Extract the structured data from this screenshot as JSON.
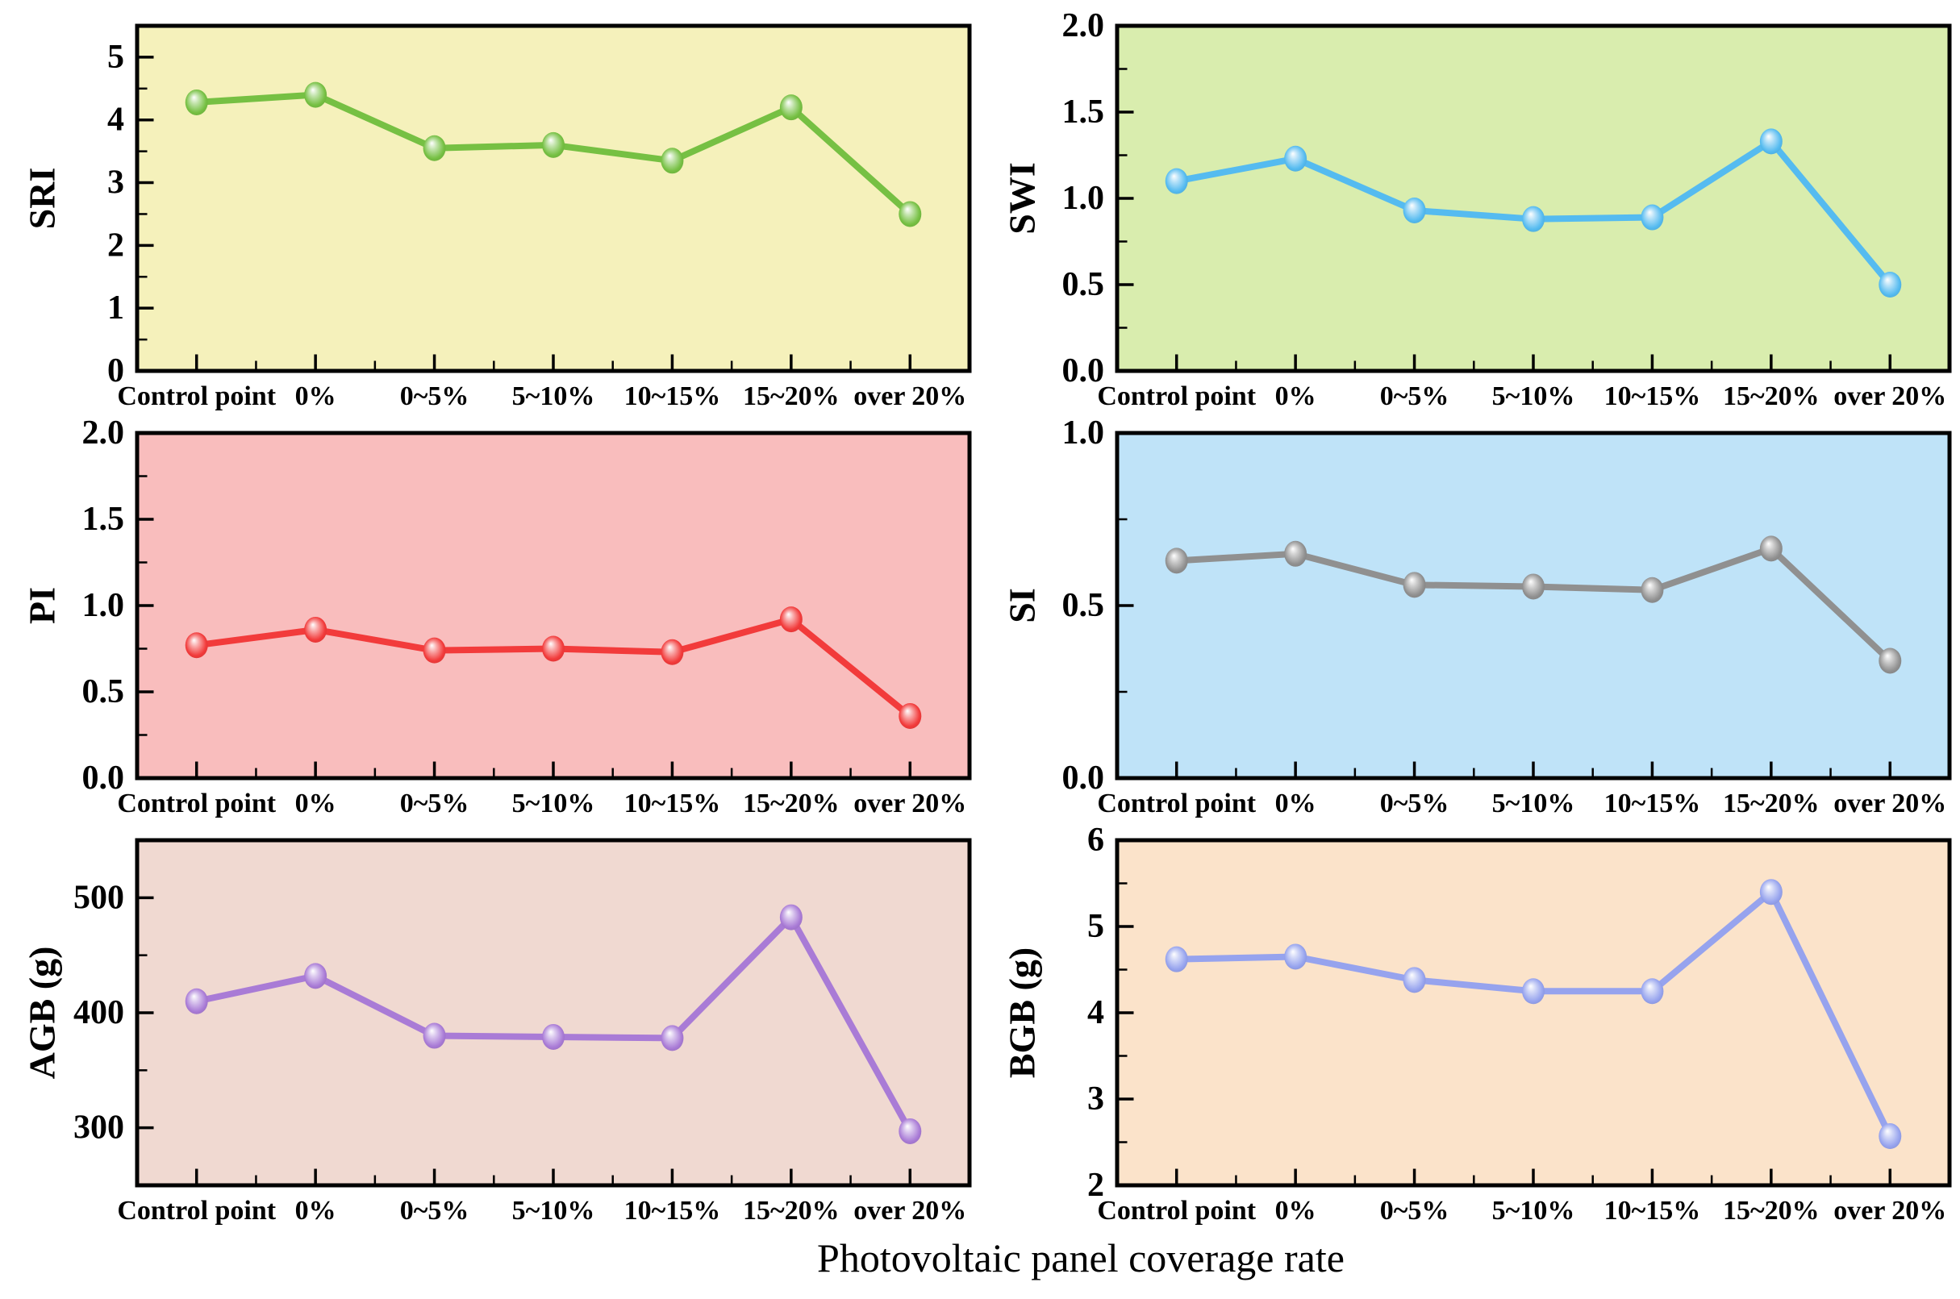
{
  "figure": {
    "x_axis_title": "Photovoltaic panel coverage rate"
  },
  "categories": [
    "Control point",
    "0%",
    "0~5%",
    "5~10%",
    "10~15%",
    "15~20%",
    "over 20%"
  ],
  "chart_data": [
    {
      "type": "line",
      "ylabel": "SRI",
      "categories": [
        "Control point",
        "0%",
        "0~5%",
        "5~10%",
        "10~15%",
        "15~20%",
        "over 20%"
      ],
      "values": [
        4.28,
        4.4,
        3.55,
        3.6,
        3.35,
        4.2,
        2.5
      ],
      "ylim": [
        0,
        5.5
      ],
      "ytick_values": [
        0,
        1,
        2,
        3,
        4,
        5
      ],
      "ytick_labels": [
        "0",
        "1",
        "2",
        "3",
        "4",
        "5"
      ],
      "minor_step": 0.5,
      "series_color": "#76c043",
      "background_color": "#f5f1bb"
    },
    {
      "type": "line",
      "ylabel": "SWI",
      "categories": [
        "Control point",
        "0%",
        "0~5%",
        "5~10%",
        "10~15%",
        "15~20%",
        "over 20%"
      ],
      "values": [
        1.1,
        1.23,
        0.93,
        0.88,
        0.89,
        1.33,
        0.5
      ],
      "ylim": [
        0,
        2
      ],
      "ytick_values": [
        0,
        0.5,
        1,
        1.5,
        2
      ],
      "ytick_labels": [
        "0.0",
        "0.5",
        "1.0",
        "1.5",
        "2.0"
      ],
      "minor_step": 0.25,
      "series_color": "#55bbf0",
      "background_color": "#d9edae"
    },
    {
      "type": "line",
      "ylabel": "PI",
      "categories": [
        "Control point",
        "0%",
        "0~5%",
        "5~10%",
        "10~15%",
        "15~20%",
        "over 20%"
      ],
      "values": [
        0.77,
        0.86,
        0.74,
        0.75,
        0.73,
        0.92,
        0.36
      ],
      "ylim": [
        0,
        2
      ],
      "ytick_values": [
        0,
        0.5,
        1,
        1.5,
        2
      ],
      "ytick_labels": [
        "0.0",
        "0.5",
        "1.0",
        "1.5",
        "2.0"
      ],
      "minor_step": 0.25,
      "series_color": "#f23b3b",
      "background_color": "#f9bdbd"
    },
    {
      "type": "line",
      "ylabel": "SI",
      "categories": [
        "Control point",
        "0%",
        "0~5%",
        "5~10%",
        "10~15%",
        "15~20%",
        "over 20%"
      ],
      "values": [
        0.63,
        0.65,
        0.56,
        0.555,
        0.545,
        0.665,
        0.34
      ],
      "ylim": [
        0,
        1
      ],
      "ytick_values": [
        0,
        0.5,
        1
      ],
      "ytick_labels": [
        "0.0",
        "0.5",
        "1.0"
      ],
      "minor_step": 0.25,
      "series_color": "#909090",
      "background_color": "#bfe3f8"
    },
    {
      "type": "line",
      "ylabel": "AGB (g)",
      "categories": [
        "Control point",
        "0%",
        "0~5%",
        "5~10%",
        "10~15%",
        "15~20%",
        "over 20%"
      ],
      "values": [
        410,
        432,
        380,
        379,
        378,
        483,
        297
      ],
      "ylim": [
        250,
        550
      ],
      "ytick_values": [
        300,
        400,
        500
      ],
      "ytick_labels": [
        "300",
        "400",
        "500"
      ],
      "minor_step": 50,
      "series_color": "#a97bd6",
      "background_color": "#f0d9d1"
    },
    {
      "type": "line",
      "ylabel": "BGB (g)",
      "categories": [
        "Control point",
        "0%",
        "0~5%",
        "5~10%",
        "10~15%",
        "15~20%",
        "over 20%"
      ],
      "values": [
        4.62,
        4.65,
        4.38,
        4.25,
        4.25,
        5.4,
        2.57
      ],
      "ylim": [
        2,
        6
      ],
      "ytick_values": [
        2,
        3,
        4,
        5,
        6
      ],
      "ytick_labels": [
        "2",
        "3",
        "4",
        "5",
        "6"
      ],
      "minor_step": 0.5,
      "series_color": "#96a3ee",
      "background_color": "#fbe3ca"
    }
  ]
}
